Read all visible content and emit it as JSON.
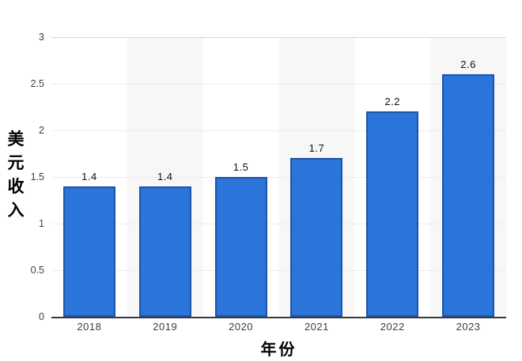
{
  "chart_data": {
    "type": "bar",
    "title": "",
    "categories": [
      "2018",
      "2019",
      "2020",
      "2021",
      "2022",
      "2023"
    ],
    "values": [
      1.4,
      1.4,
      1.5,
      1.7,
      2.2,
      2.6
    ],
    "value_labels": [
      "1.4",
      "1.4",
      "1.5",
      "1.7",
      "2.2",
      "2.6"
    ],
    "xlabel": "年份",
    "ylabel": "美元收入",
    "ylim": [
      0,
      3
    ],
    "yticks": [
      0,
      0.5,
      1,
      1.5,
      2,
      2.5,
      3
    ],
    "ytick_labels": [
      "0",
      "0.5",
      "1",
      "1.5",
      "2",
      "2.5",
      "3"
    ],
    "grid": true,
    "legend": "none",
    "banded_category_indices": [
      1,
      3,
      5
    ],
    "colors": {
      "bar_fill": "#2b74d9",
      "bar_border": "#1d55a6",
      "column_band": "#f7f7f8",
      "grid_line": "#ececec",
      "grid_line_top": "#d9d9d9",
      "axis_line": "#3a3a3a",
      "tick_text": "#3d3d3d",
      "value_text": "#111111"
    }
  }
}
